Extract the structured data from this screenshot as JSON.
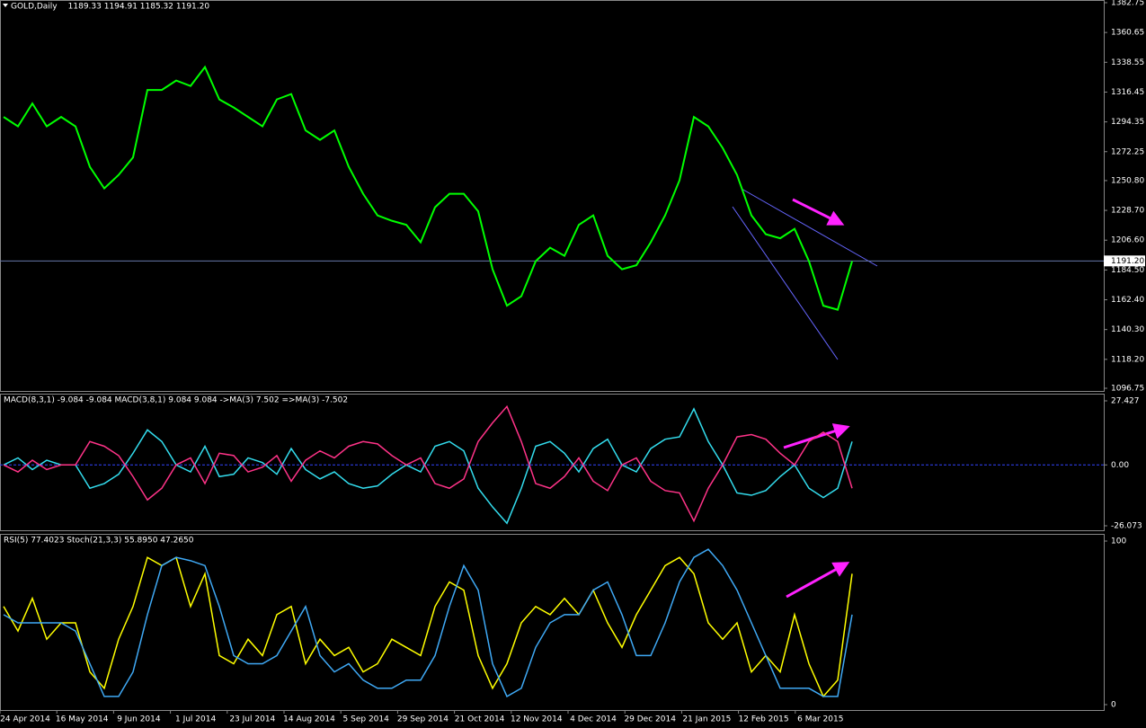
{
  "chart_data": [
    {
      "type": "line",
      "title": "GOLD,Daily",
      "subtitle": "1189.33 1194.91 1185.32 1191.20",
      "ylim": [
        1094.75,
        1384.75
      ],
      "yticks": [
        {
          "value": 1382.75,
          "label": "1382.75"
        },
        {
          "value": 1360.65,
          "label": "1360.65"
        },
        {
          "value": 1338.55,
          "label": "1338.55"
        },
        {
          "value": 1316.45,
          "label": "1316.45"
        },
        {
          "value": 1294.35,
          "label": "1294.35"
        },
        {
          "value": 1272.25,
          "label": "1272.25"
        },
        {
          "value": 1250.8,
          "label": "1250.80"
        },
        {
          "value": 1228.7,
          "label": "1228.70"
        },
        {
          "value": 1206.6,
          "label": "1206.60"
        },
        {
          "value": 1184.5,
          "label": "1184.50"
        },
        {
          "value": 1162.4,
          "label": "1162.40"
        },
        {
          "value": 1140.3,
          "label": "1140.30"
        },
        {
          "value": 1118.2,
          "label": "1118.20"
        },
        {
          "value": 1096.75,
          "label": "1096.75"
        }
      ],
      "current_price": {
        "value": 1191.2,
        "label": "1191.20"
      },
      "series": [
        {
          "color": "#00ff00",
          "values": [
            1298,
            1291,
            1308,
            1291,
            1298,
            1291,
            1261,
            1245,
            1255,
            1268,
            1318,
            1318,
            1325,
            1321,
            1335,
            1311,
            1305,
            1298,
            1291,
            1311,
            1315,
            1288,
            1281,
            1288,
            1261,
            1241,
            1225,
            1221,
            1218,
            1205,
            1231,
            1241,
            1241,
            1228,
            1185,
            1158,
            1165,
            1191,
            1201,
            1195,
            1218,
            1225,
            1195,
            1185,
            1188,
            1205,
            1225,
            1251,
            1298,
            1291,
            1275,
            1255,
            1225,
            1211,
            1208,
            1215,
            1191,
            1158,
            1155,
            1191
          ]
        }
      ]
    },
    {
      "type": "line",
      "title": "MACD(8,3,1) -9.084 -9.084  MACD(3,8,1) 9.084 9.084  ->MA(3) 7.502  =>MA(3) -7.502",
      "ylim": [
        -27.997,
        30.51
      ],
      "yticks": [
        27.427,
        {
          "value": 0,
          "label": "0.00"
        },
        -26.073
      ],
      "series": [
        {
          "color": "#33ddee",
          "values": [
            0,
            3,
            -2,
            2,
            0,
            0,
            -10,
            -8,
            -4,
            5,
            15,
            10,
            0,
            -3,
            8,
            -5,
            -4,
            3,
            1,
            -4,
            7,
            -2,
            -6,
            -3,
            -8,
            -10,
            -9,
            -4,
            0,
            -3,
            8,
            10,
            6,
            -10,
            -18,
            -25,
            -10,
            8,
            10,
            5,
            -3,
            7,
            11,
            0,
            -3,
            7,
            11,
            12,
            24,
            10,
            0,
            -12,
            -13,
            -11,
            -5,
            0,
            -10,
            -14,
            -10,
            10
          ]
        },
        {
          "color": "#ff3388",
          "values": [
            0,
            -3,
            2,
            -2,
            0,
            0,
            10,
            8,
            4,
            -5,
            -15,
            -10,
            0,
            3,
            -8,
            5,
            4,
            -3,
            -1,
            4,
            -7,
            2,
            6,
            3,
            8,
            10,
            9,
            4,
            0,
            3,
            -8,
            -10,
            -6,
            10,
            18,
            25,
            10,
            -8,
            -10,
            -5,
            3,
            -7,
            -11,
            0,
            3,
            -7,
            -11,
            -12,
            -24,
            -10,
            0,
            12,
            13,
            11,
            5,
            0,
            10,
            14,
            10,
            -10
          ]
        }
      ]
    },
    {
      "type": "line",
      "title": "RSI(5) 77.4023  Stoch(21,3,3) 55.8950 47.2650",
      "ylim": [
        -3.3,
        104.4
      ],
      "yticks": [
        100,
        0
      ],
      "series": [
        {
          "color": "#ffff00",
          "values": [
            60,
            45,
            65,
            40,
            50,
            50,
            20,
            10,
            40,
            60,
            90,
            85,
            90,
            60,
            80,
            30,
            25,
            40,
            30,
            55,
            60,
            25,
            40,
            30,
            35,
            20,
            25,
            40,
            35,
            30,
            60,
            75,
            70,
            30,
            10,
            25,
            50,
            60,
            55,
            65,
            55,
            70,
            50,
            35,
            55,
            70,
            85,
            90,
            80,
            50,
            40,
            50,
            20,
            30,
            20,
            55,
            25,
            5,
            15,
            80
          ]
        },
        {
          "color": "#3fa9f5",
          "values": [
            55,
            50,
            50,
            50,
            50,
            45,
            25,
            5,
            5,
            20,
            55,
            85,
            90,
            88,
            85,
            60,
            30,
            25,
            25,
            30,
            45,
            60,
            30,
            20,
            25,
            15,
            10,
            10,
            15,
            15,
            30,
            60,
            85,
            70,
            25,
            5,
            10,
            35,
            50,
            55,
            55,
            70,
            75,
            55,
            30,
            30,
            50,
            75,
            90,
            95,
            85,
            70,
            50,
            30,
            10,
            10,
            10,
            5,
            5,
            55
          ]
        }
      ]
    }
  ],
  "x_axis": {
    "labels": [
      "24 Apr 2014",
      "16 May 2014",
      "9 Jun 2014",
      "1 Jul 2014",
      "23 Jul 2014",
      "14 Aug 2014",
      "5 Sep 2014",
      "29 Sep 2014",
      "21 Oct 2014",
      "12 Nov 2014",
      "4 Dec 2014",
      "29 Dec 2014",
      "21 Jan 2015",
      "12 Feb 2015",
      "6 Mar 2015"
    ]
  }
}
